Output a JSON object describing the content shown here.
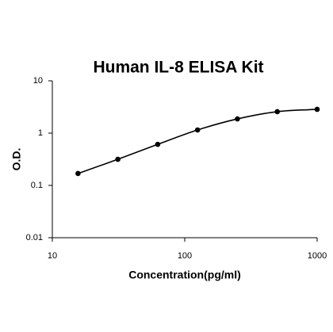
{
  "chart_data": {
    "type": "scatter",
    "title": "Human IL-8 ELISA Kit",
    "x_label": "Concentration(pg/ml)",
    "y_label": "O.D.",
    "x": [
      15.625,
      31.25,
      62.5,
      125,
      250,
      500,
      1000
    ],
    "values": [
      0.169,
      0.316,
      0.61,
      1.15,
      1.87,
      2.57,
      2.85
    ],
    "color": "#000000",
    "xlim": [
      10,
      1000
    ],
    "ylim": [
      0.01,
      10
    ],
    "xticks": [
      10,
      100,
      1000
    ],
    "yticks": [
      0.01,
      0.1,
      1,
      10
    ],
    "log_x": true,
    "log_y": true,
    "fit_line": true
  }
}
